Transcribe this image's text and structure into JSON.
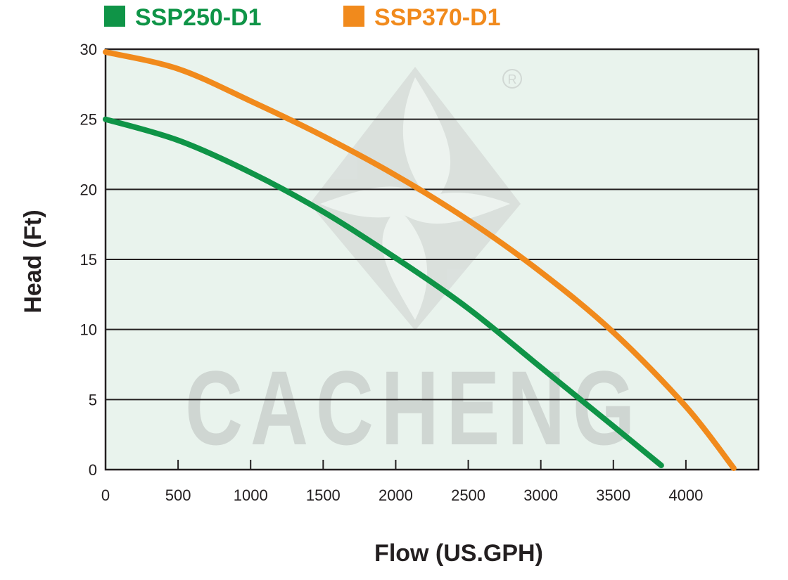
{
  "chart_data": {
    "type": "line",
    "title": "",
    "xlabel": "Flow (US.GPH)",
    "ylabel": "Head (Ft)",
    "xlim": [
      0,
      4500
    ],
    "ylim": [
      0,
      30
    ],
    "x_ticks": [
      "0",
      "500",
      "1000",
      "1500",
      "2000",
      "2500",
      "3000",
      "3500",
      "4000"
    ],
    "y_ticks": [
      "0",
      "5",
      "10",
      "15",
      "20",
      "25",
      "30"
    ],
    "grid": "horizontal",
    "legend_position": "top-left",
    "series": [
      {
        "name": "SSP250-D1",
        "color": "#0f9447",
        "x": [
          0,
          500,
          1000,
          1500,
          2000,
          2500,
          3000,
          3500,
          3830
        ],
        "y": [
          25,
          23.5,
          21.2,
          18.4,
          15.1,
          11.5,
          7.3,
          3.1,
          0.3
        ]
      },
      {
        "name": "SSP370-D1",
        "color": "#f18a1c",
        "x": [
          0,
          500,
          1000,
          1500,
          2000,
          2500,
          3000,
          3500,
          4000,
          4330
        ],
        "y": [
          29.8,
          28.6,
          26.3,
          23.8,
          21.0,
          17.8,
          14.1,
          9.8,
          4.5,
          0.1
        ]
      }
    ],
    "watermark": "CACHENG"
  }
}
